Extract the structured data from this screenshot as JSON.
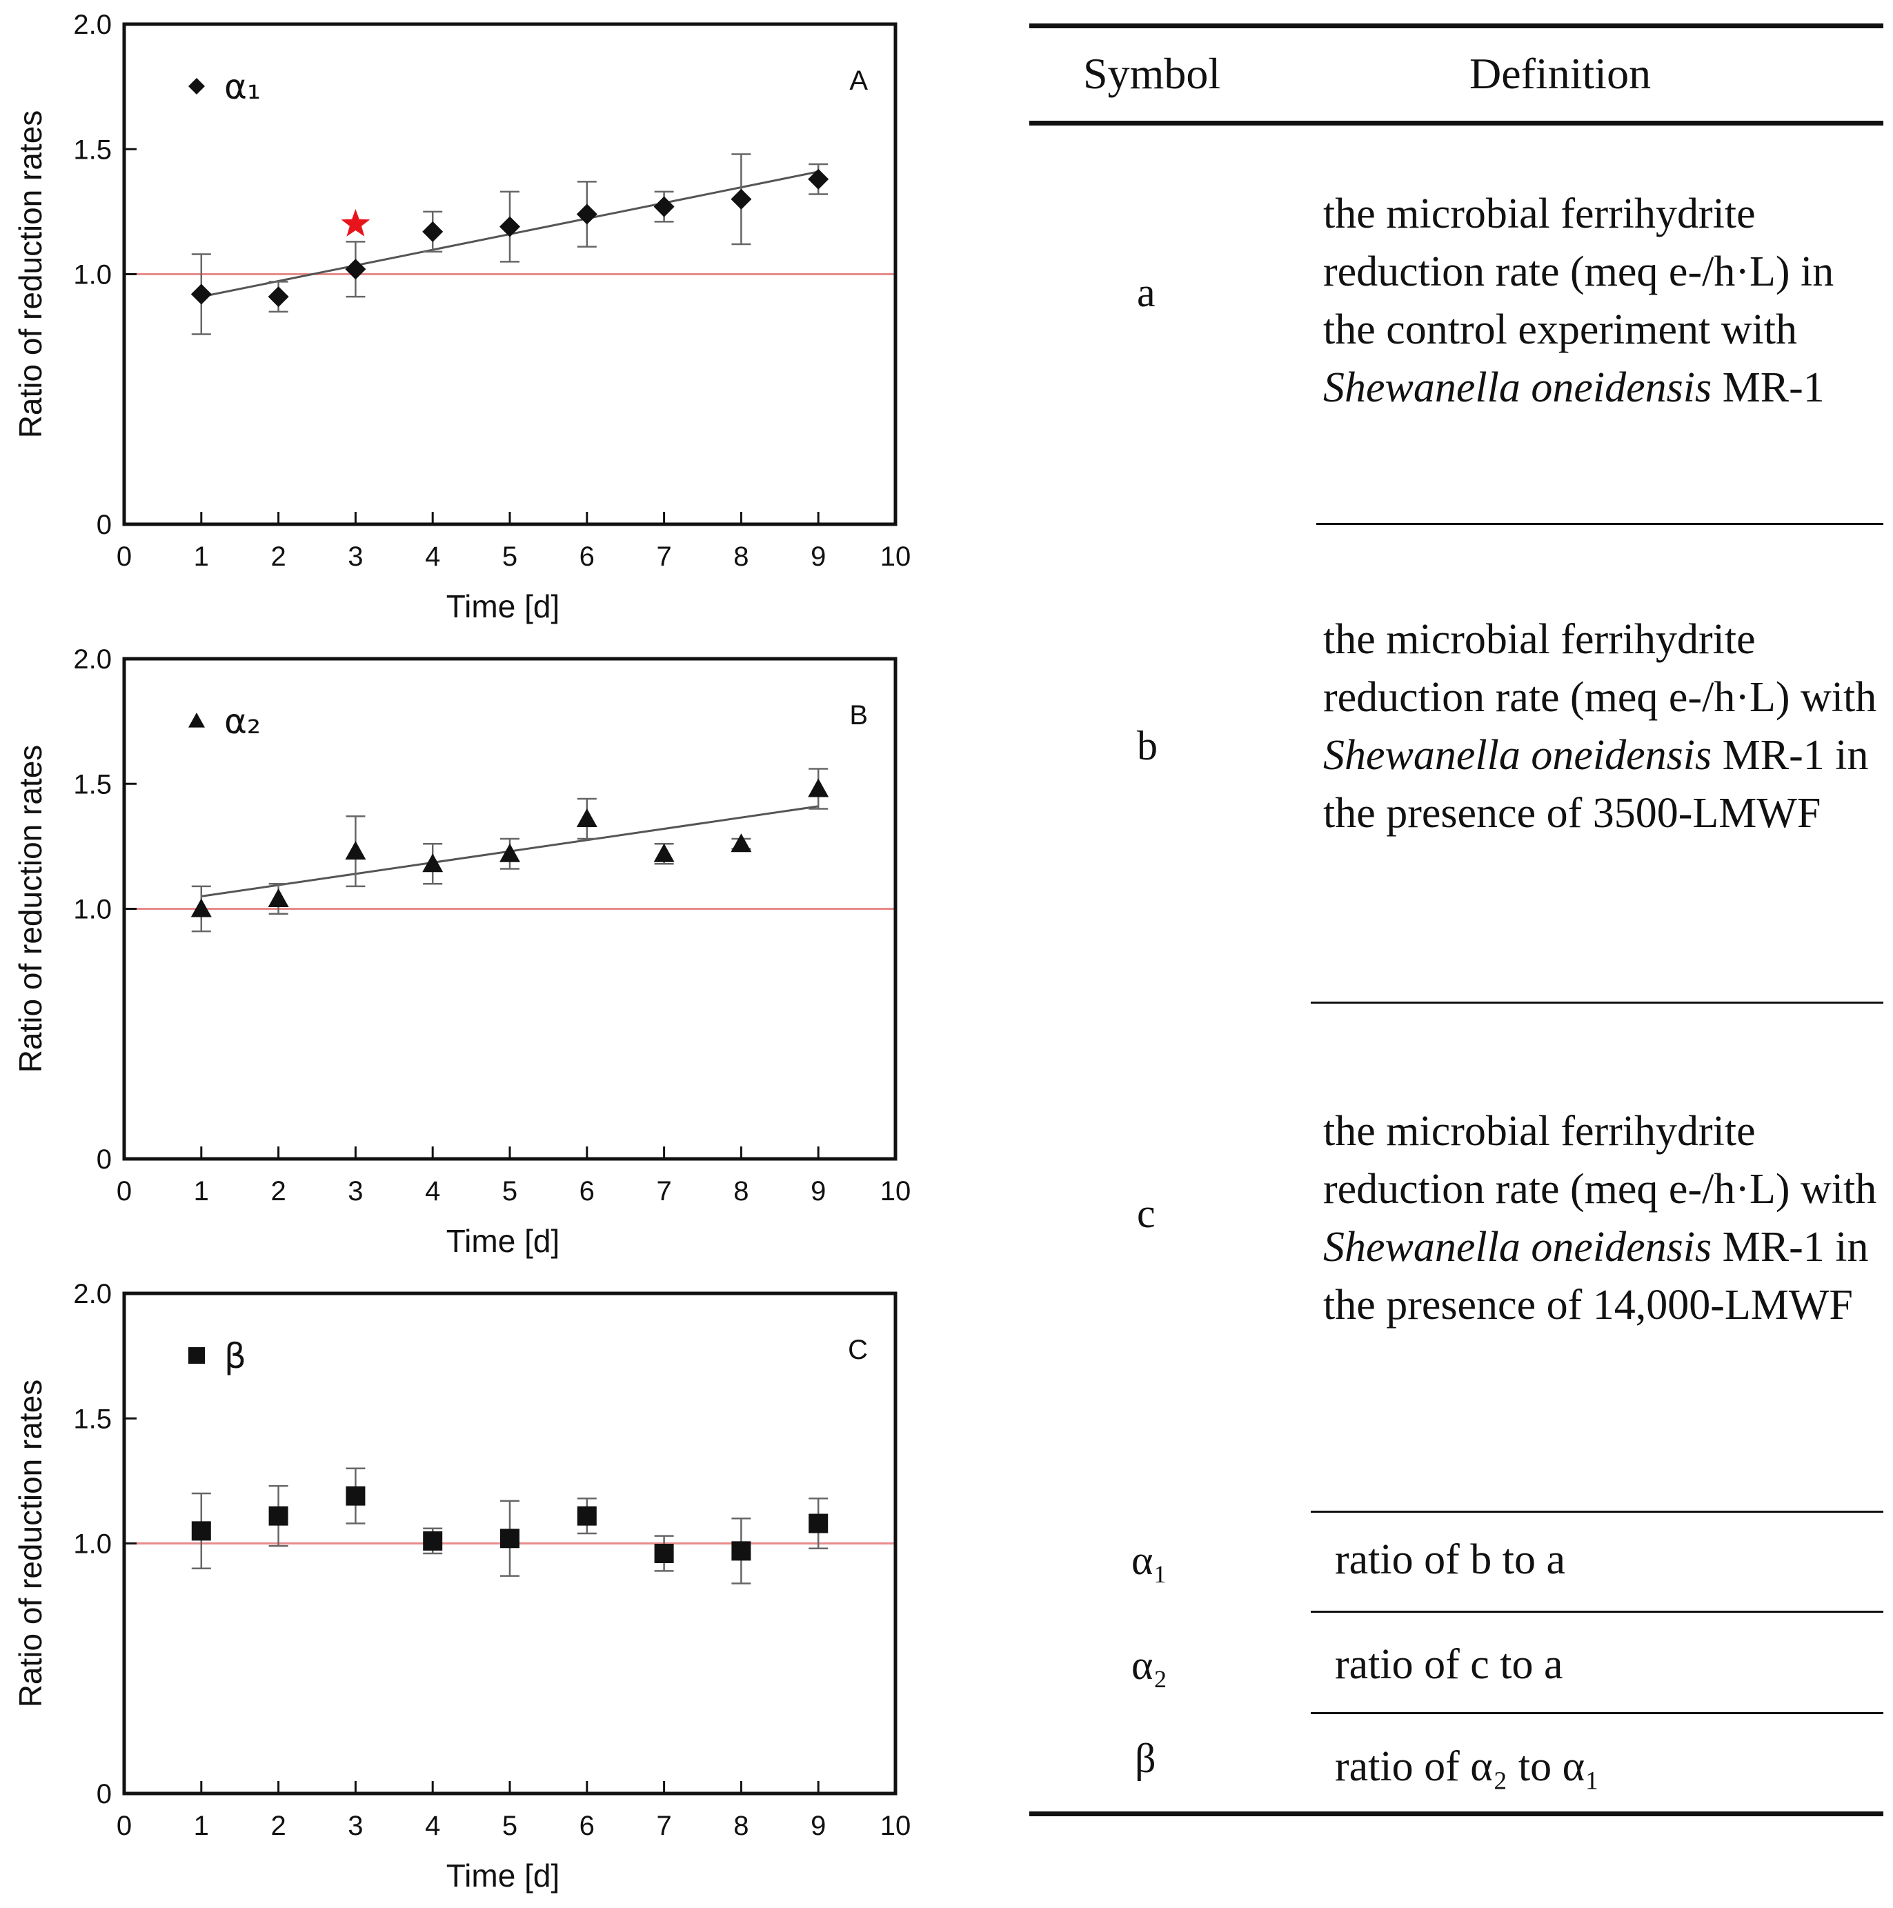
{
  "chart_data": [
    {
      "type": "scatter",
      "panel": "A",
      "legend": "α₁",
      "marker": "diamond",
      "xlabel": "Time [d]",
      "ylabel": "Ratio of reduction rates",
      "xlim": [
        0,
        10
      ],
      "ylim": [
        0,
        2.0
      ],
      "xticks": [
        "0",
        "1",
        "2",
        "3",
        "4",
        "5",
        "6",
        "7",
        "8",
        "9",
        "10"
      ],
      "yticks": [
        {
          "v": 0,
          "t": "0"
        },
        {
          "v": 1.0,
          "t": "1.0"
        },
        {
          "v": 1.5,
          "t": "1.5"
        },
        {
          "v": 2.0,
          "t": "2.0"
        }
      ],
      "reference_line": 1.0,
      "x": [
        1,
        2,
        3,
        4,
        5,
        6,
        7,
        8,
        9
      ],
      "y": [
        0.92,
        0.91,
        1.02,
        1.17,
        1.19,
        1.24,
        1.27,
        1.3,
        1.38
      ],
      "err": [
        0.16,
        0.06,
        0.11,
        0.08,
        0.14,
        0.13,
        0.06,
        0.18,
        0.06
      ],
      "trend": {
        "x": [
          1,
          9
        ],
        "y": [
          0.91,
          1.41
        ]
      },
      "marker_star": {
        "x": 3,
        "y": 1.2
      }
    },
    {
      "type": "scatter",
      "panel": "B",
      "legend": "α₂",
      "marker": "triangle",
      "xlabel": "Time [d]",
      "ylabel": "Ratio of reduction rates",
      "xlim": [
        0,
        10
      ],
      "ylim": [
        0,
        2.0
      ],
      "xticks": [
        "0",
        "1",
        "2",
        "3",
        "4",
        "5",
        "6",
        "7",
        "8",
        "9",
        "10"
      ],
      "yticks": [
        {
          "v": 0,
          "t": "0"
        },
        {
          "v": 1.0,
          "t": "1.0"
        },
        {
          "v": 1.5,
          "t": "1.5"
        },
        {
          "v": 2.0,
          "t": "2.0"
        }
      ],
      "reference_line": 1.0,
      "x": [
        1,
        2,
        3,
        4,
        5,
        6,
        7,
        8,
        9
      ],
      "y": [
        1.0,
        1.04,
        1.23,
        1.18,
        1.22,
        1.36,
        1.22,
        1.26,
        1.48
      ],
      "err": [
        0.09,
        0.06,
        0.14,
        0.08,
        0.06,
        0.08,
        0.04,
        0.02,
        0.08
      ],
      "trend": {
        "x": [
          1,
          9
        ],
        "y": [
          1.05,
          1.41
        ]
      }
    },
    {
      "type": "scatter",
      "panel": "C",
      "legend": "β",
      "marker": "square",
      "xlabel": "Time [d]",
      "ylabel": "Ratio of reduction rates",
      "xlim": [
        0,
        10
      ],
      "ylim": [
        0,
        2.0
      ],
      "xticks": [
        "0",
        "1",
        "2",
        "3",
        "4",
        "5",
        "6",
        "7",
        "8",
        "9",
        "10"
      ],
      "yticks": [
        {
          "v": 0,
          "t": "0"
        },
        {
          "v": 1.0,
          "t": "1.0"
        },
        {
          "v": 1.5,
          "t": "1.5"
        },
        {
          "v": 2.0,
          "t": "2.0"
        }
      ],
      "reference_line": 1.0,
      "x": [
        1,
        2,
        3,
        4,
        5,
        6,
        7,
        8,
        9
      ],
      "y": [
        1.05,
        1.11,
        1.19,
        1.01,
        1.02,
        1.11,
        0.96,
        0.97,
        1.08
      ],
      "err": [
        0.15,
        0.12,
        0.11,
        0.05,
        0.15,
        0.07,
        0.07,
        0.13,
        0.1
      ]
    }
  ],
  "table": {
    "header": {
      "symbol": "Symbol",
      "definition": "Definition"
    },
    "rows": [
      {
        "symbol": "a",
        "pre": "the microbial ferrihydrite reduction rate (meq e-/h·L) in the control experiment with ",
        "italic": "Shewanella oneidensis",
        "post": " MR-1"
      },
      {
        "symbol": "b",
        "pre": "the microbial ferrihydrite reduction rate (meq e-/h·L) with ",
        "italic": "Shewanella oneidensis",
        "post": " MR-1 in the presence of 3500-LMWF"
      },
      {
        "symbol": "c",
        "pre": "the microbial ferrihydrite reduction rate (meq e-/h·L) with ",
        "italic": "Shewanella oneidensis",
        "post": " MR-1 in the presence of 14,000-LMWF"
      },
      {
        "symbol": "α₁",
        "def": "ratio of b to a"
      },
      {
        "symbol": "α₂",
        "def": "ratio of c to a"
      },
      {
        "symbol": "β",
        "def": "ratio of α₂ to α₁"
      }
    ]
  }
}
